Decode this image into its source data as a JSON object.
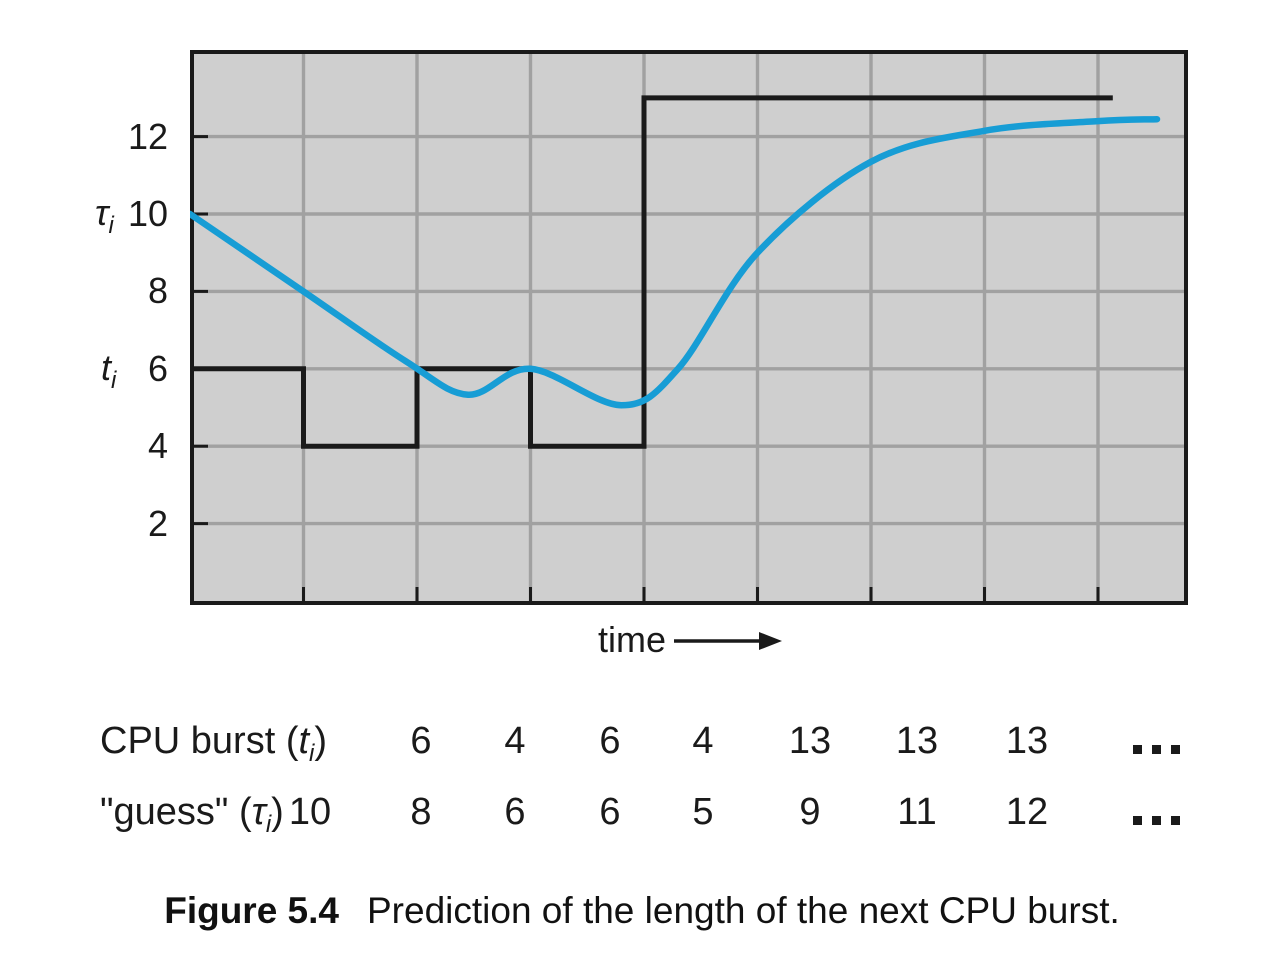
{
  "figure_caption": {
    "label": "Figure 5.4",
    "text": "Prediction of the length of the next CPU burst."
  },
  "axis": {
    "y_var": {
      "symbol": "τ",
      "sub": "i"
    },
    "t_var": {
      "symbol": "t",
      "sub": "i"
    },
    "x_label": "time",
    "y_tick_values": [
      12,
      10,
      8,
      6,
      4,
      2
    ]
  },
  "table": {
    "rows": [
      {
        "name": "cpu-burst-row",
        "label": {
          "prefix": "CPU burst (",
          "var": "t",
          "sub": "i",
          "suffix": ")"
        },
        "values": [
          "",
          "6",
          "4",
          "6",
          "4",
          "13",
          "13",
          "13",
          "..."
        ]
      },
      {
        "name": "guess-row",
        "label": {
          "prefix": "\"guess\" (",
          "var": "τ",
          "sub": "i",
          "suffix": ")"
        },
        "values": [
          "10",
          "8",
          "6",
          "6",
          "5",
          "9",
          "11",
          "12",
          "..."
        ]
      }
    ]
  },
  "chart_data": {
    "type": "line",
    "title": "",
    "xlabel": "time",
    "ylabel": "tau_i (guess) and t_i (CPU burst)",
    "xlim": [
      0,
      8.8
    ],
    "ylim": [
      0,
      14.25
    ],
    "yticks": [
      2,
      4,
      6,
      8,
      10,
      12
    ],
    "x_gridlines": [
      1,
      2,
      3,
      4,
      5,
      6,
      7,
      8
    ],
    "grid": true,
    "legend_position": "none",
    "background": "#cfcfcf",
    "grid_color": "#a1a1a1",
    "series": [
      {
        "name": "CPU burst (t_i)",
        "style": "step",
        "color": "#1a1a1a",
        "points": [
          [
            0,
            6
          ],
          [
            1,
            6
          ],
          [
            1,
            4
          ],
          [
            2,
            4
          ],
          [
            2,
            6
          ],
          [
            3,
            6
          ],
          [
            3,
            4
          ],
          [
            4,
            4
          ],
          [
            4,
            13
          ],
          [
            8.13,
            13
          ]
        ]
      },
      {
        "name": "guess (tau_i)",
        "style": "smooth",
        "color": "#179dd5",
        "points": [
          [
            0,
            10
          ],
          [
            1,
            8
          ],
          [
            1.9,
            6.2
          ],
          [
            2.45,
            5.33
          ],
          [
            3,
            6
          ],
          [
            3.8,
            5.06
          ],
          [
            4.3,
            6.0
          ],
          [
            5,
            9.0
          ],
          [
            6,
            11.35
          ],
          [
            7,
            12.15
          ],
          [
            8,
            12.4
          ],
          [
            8.52,
            12.45
          ]
        ]
      }
    ],
    "burst_values": [
      6,
      4,
      6,
      4,
      13,
      13,
      13
    ],
    "guess_values": [
      10,
      8,
      6,
      6,
      5,
      9,
      11,
      12
    ]
  }
}
